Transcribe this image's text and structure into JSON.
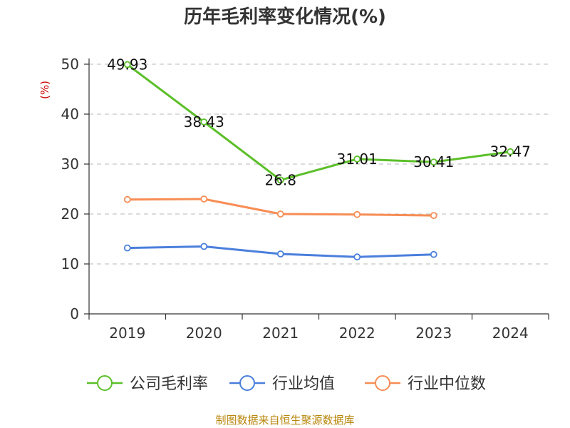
{
  "chart_data": {
    "type": "line",
    "title": "历年毛利率变化情况(%)",
    "unit_label": "(%)",
    "categories": [
      "2019",
      "2020",
      "2021",
      "2022",
      "2023",
      "2024"
    ],
    "ylim": [
      0,
      50
    ],
    "yticks": [
      0,
      10,
      20,
      30,
      40,
      50
    ],
    "grid": true,
    "legend_position": "bottom",
    "series": [
      {
        "name": "公司毛利率",
        "color": "#5cbf2a",
        "labels": true,
        "values": [
          49.93,
          38.43,
          26.8,
          31.01,
          30.41,
          32.47
        ]
      },
      {
        "name": "行业均值",
        "color": "#4a7fdc",
        "labels": false,
        "values": [
          13.2,
          13.5,
          12.0,
          11.4,
          11.9,
          null
        ]
      },
      {
        "name": "行业中位数",
        "color": "#f78d55",
        "labels": false,
        "values": [
          22.9,
          23.0,
          20.0,
          19.9,
          19.7,
          null
        ]
      }
    ],
    "source": "制图数据来自恒生聚源数据库"
  }
}
